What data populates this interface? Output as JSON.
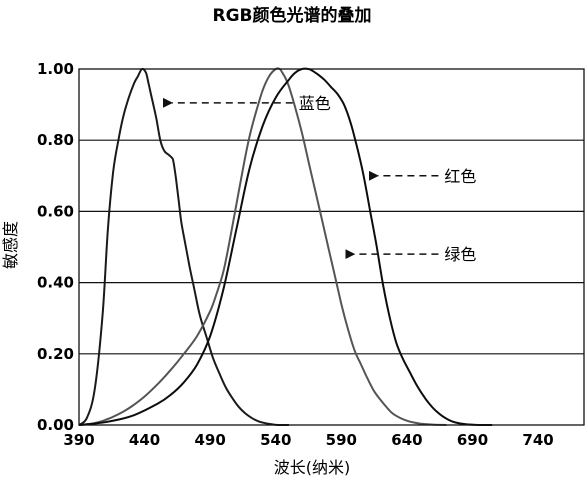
{
  "chart_data": {
    "type": "line",
    "title": "RGB颜色光谱的叠加",
    "xlabel": "波长(纳米)",
    "ylabel": "敏感度",
    "xlim": [
      390,
      775
    ],
    "ylim": [
      0,
      1.0
    ],
    "grid": "horizontal",
    "x_ticks": [
      390,
      440,
      490,
      540,
      590,
      640,
      690,
      740
    ],
    "x_tick_labels": [
      "390",
      "440",
      "490",
      "540",
      "590",
      "640",
      "690",
      "740"
    ],
    "y_ticks": [
      0,
      0.2,
      0.4,
      0.6,
      0.8,
      1.0
    ],
    "y_tick_labels": [
      "0.00",
      "0.20",
      "0.40",
      "0.60",
      "0.80",
      "1.00"
    ],
    "series": [
      {
        "name": "蓝色",
        "color": "#1a1a1a",
        "x": [
          390,
          396,
          402,
          408,
          412,
          416,
          420,
          424,
          428,
          432,
          435,
          438,
          441,
          443,
          446,
          449,
          452,
          455,
          458,
          461,
          462,
          464,
          466,
          468,
          471,
          474,
          478,
          482,
          487,
          492,
          497,
          502,
          507,
          512,
          517,
          522,
          527,
          532,
          537,
          542,
          550
        ],
        "y": [
          0.0,
          0.02,
          0.1,
          0.31,
          0.55,
          0.71,
          0.8,
          0.87,
          0.92,
          0.96,
          0.98,
          1.0,
          0.99,
          0.96,
          0.91,
          0.86,
          0.8,
          0.77,
          0.76,
          0.75,
          0.74,
          0.69,
          0.63,
          0.57,
          0.51,
          0.45,
          0.38,
          0.31,
          0.25,
          0.19,
          0.145,
          0.105,
          0.075,
          0.05,
          0.032,
          0.019,
          0.01,
          0.005,
          0.002,
          0.0,
          0.0
        ]
      },
      {
        "name": "绿色",
        "color": "#555555",
        "x": [
          390,
          400,
          410,
          420,
          430,
          440,
          450,
          460,
          470,
          480,
          490,
          495,
          500,
          505,
          510,
          515,
          520,
          525,
          530,
          535,
          540,
          543,
          545,
          548,
          551,
          555,
          560,
          565,
          570,
          575,
          580,
          585,
          590,
          595,
          600,
          605,
          610,
          615,
          620,
          625,
          630,
          640,
          650,
          660,
          670
        ],
        "y": [
          0.0,
          0.004,
          0.014,
          0.03,
          0.052,
          0.08,
          0.115,
          0.155,
          0.2,
          0.25,
          0.32,
          0.37,
          0.43,
          0.52,
          0.62,
          0.72,
          0.81,
          0.88,
          0.94,
          0.98,
          1.0,
          1.0,
          0.99,
          0.97,
          0.94,
          0.89,
          0.82,
          0.74,
          0.66,
          0.58,
          0.5,
          0.42,
          0.34,
          0.27,
          0.21,
          0.17,
          0.13,
          0.095,
          0.07,
          0.048,
          0.03,
          0.012,
          0.004,
          0.001,
          0.0
        ]
      },
      {
        "name": "红色",
        "color": "#0d0d0d",
        "x": [
          390,
          410,
          430,
          450,
          460,
          470,
          480,
          490,
          500,
          510,
          520,
          530,
          540,
          550,
          555,
          560,
          565,
          568,
          572,
          577,
          582,
          587,
          592,
          597,
          602,
          607,
          612,
          617,
          622,
          627,
          632,
          637,
          642,
          647,
          652,
          657,
          662,
          667,
          672,
          677,
          685,
          695,
          705
        ],
        "y": [
          0.0,
          0.008,
          0.025,
          0.06,
          0.085,
          0.12,
          0.17,
          0.25,
          0.38,
          0.55,
          0.72,
          0.84,
          0.92,
          0.97,
          0.99,
          1.0,
          1.0,
          0.995,
          0.985,
          0.97,
          0.95,
          0.93,
          0.9,
          0.85,
          0.78,
          0.7,
          0.6,
          0.5,
          0.39,
          0.3,
          0.23,
          0.185,
          0.15,
          0.115,
          0.085,
          0.06,
          0.04,
          0.025,
          0.014,
          0.007,
          0.002,
          0.0,
          0.0
        ]
      }
    ],
    "annotations": [
      {
        "text": "蓝色",
        "series": "蓝色",
        "arrow_to": [
          454,
          0.905
        ],
        "label_at": [
          553,
          0.905
        ]
      },
      {
        "text": "红色",
        "series": "红色",
        "arrow_to": [
          611,
          0.7
        ],
        "label_at": [
          664,
          0.7
        ]
      },
      {
        "text": "绿色",
        "series": "绿色",
        "arrow_to": [
          593,
          0.48
        ],
        "label_at": [
          664,
          0.48
        ]
      }
    ]
  }
}
